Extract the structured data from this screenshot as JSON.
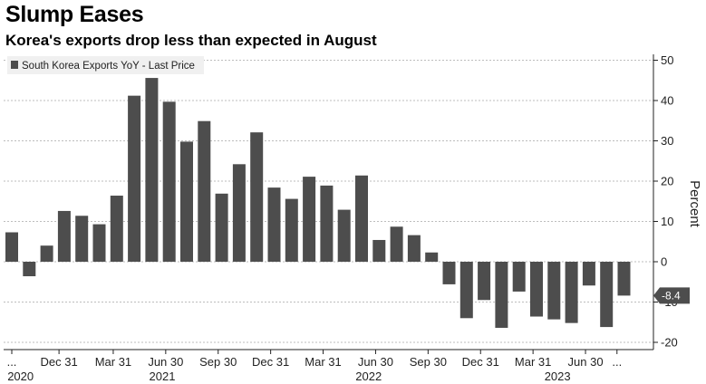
{
  "chart_data": {
    "type": "bar",
    "title": "Slump Eases",
    "subtitle": "Korea's exports drop less than expected in August",
    "legend": "South Korea Exports YoY - Last Price",
    "ylabel": "Percent",
    "ylim": [
      -20,
      50
    ],
    "yticks": [
      50,
      40,
      30,
      20,
      10,
      0,
      -10,
      -20
    ],
    "grid": true,
    "legend_position": "top-left",
    "last_value_label": "-8.4",
    "bar_color": "#4d4d4d",
    "values": [
      7.3,
      -3.6,
      4.0,
      12.6,
      11.4,
      9.3,
      16.4,
      41.2,
      45.6,
      39.7,
      29.8,
      34.9,
      16.9,
      24.2,
      32.1,
      18.4,
      15.6,
      21.1,
      18.9,
      12.9,
      21.4,
      5.4,
      8.7,
      6.6,
      2.3,
      -5.6,
      -14.0,
      -9.5,
      -16.4,
      -7.4,
      -13.6,
      -14.3,
      -15.2,
      -5.9,
      -16.2,
      -8.4
    ],
    "x_tick_labels": [
      {
        "bar": 0.0,
        "label": "..."
      },
      {
        "bar": 2.7,
        "label": "Dec 31"
      },
      {
        "bar": 5.8,
        "label": "Mar 31"
      },
      {
        "bar": 8.8,
        "label": "Jun 30"
      },
      {
        "bar": 11.8,
        "label": "Sep 30"
      },
      {
        "bar": 14.8,
        "label": "Dec 31"
      },
      {
        "bar": 17.8,
        "label": "Mar 31"
      },
      {
        "bar": 20.8,
        "label": "Jun 30"
      },
      {
        "bar": 23.8,
        "label": "Sep 30"
      },
      {
        "bar": 26.8,
        "label": "Dec 31"
      },
      {
        "bar": 29.8,
        "label": "Mar 31"
      },
      {
        "bar": 32.8,
        "label": "Jun 30"
      },
      {
        "bar": 34.6,
        "label": "..."
      }
    ],
    "year_labels": [
      {
        "bar": 0.5,
        "label": "2020"
      },
      {
        "bar": 8.6,
        "label": "2021"
      },
      {
        "bar": 20.4,
        "label": "2022"
      },
      {
        "bar": 31.2,
        "label": "2023"
      }
    ]
  }
}
